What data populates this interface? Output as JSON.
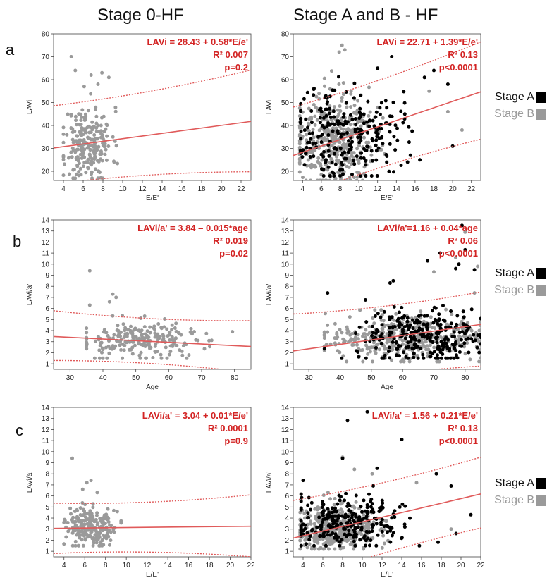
{
  "headers": {
    "col_left": "Stage 0-HF",
    "col_right": "Stage A and B - HF"
  },
  "row_letters": [
    "a",
    "b",
    "c"
  ],
  "legend": {
    "stage_a": "Stage A",
    "stage_b": "Stage B",
    "color_a": "#000000",
    "color_b": "#9a9a9a"
  },
  "colors": {
    "stage0": "#9a9a9a",
    "stageA": "#000000",
    "stageB": "#9a9a9a",
    "fit": "#e05a5a",
    "equation": "#d32424"
  },
  "chart_data": [
    {
      "id": "a-left",
      "type": "scatter",
      "xlabel": "E/E'",
      "ylabel": "LAVi",
      "xlim": [
        3,
        23
      ],
      "ylim": [
        16,
        80
      ],
      "xticks": [
        4,
        6,
        8,
        10,
        12,
        14,
        16,
        18,
        20,
        22
      ],
      "yticks": [
        20,
        30,
        40,
        50,
        60,
        70,
        80
      ],
      "annotation": [
        "LAVi = 28.43 + 0.58*E/e'",
        "R² 0.007",
        "p=0.2"
      ],
      "fit": {
        "intercept": 28.43,
        "slope": 0.58,
        "ci_upper": [
          48.6,
          64.2
        ],
        "ci_lower": [
          14.5,
          19.8
        ],
        "ci_x": [
          3,
          23
        ]
      },
      "series": [
        {
          "name": "Stage 0",
          "color": "#9a9a9a",
          "cloud": {
            "n": 230,
            "x": [
              4,
              9.5
            ],
            "xmean": 6.5,
            "xsd": 1.2,
            "ymean": 32,
            "ysd": 8,
            "ymin": 17,
            "ymax": 63,
            "seed": 11
          },
          "points": [
            [
              4.8,
              70
            ],
            [
              5.2,
              64
            ],
            [
              6.8,
              62
            ],
            [
              7.9,
              63
            ],
            [
              8.6,
              61
            ],
            [
              7.5,
              58
            ],
            [
              6.1,
              57
            ]
          ]
        }
      ]
    },
    {
      "id": "a-right",
      "type": "scatter",
      "xlabel": "E/E'",
      "ylabel": "LAVi",
      "xlim": [
        3,
        23
      ],
      "ylim": [
        16,
        80
      ],
      "xticks": [
        4,
        6,
        8,
        10,
        12,
        14,
        16,
        18,
        20,
        22
      ],
      "yticks": [
        20,
        30,
        40,
        50,
        60,
        70,
        80
      ],
      "annotation": [
        "LAVi = 22.71 + 1.39*E/e'",
        "R² 0.13",
        "p<0.0001"
      ],
      "fit": {
        "intercept": 22.71,
        "slope": 1.39,
        "ci_upper": [
          48.0,
          76.5
        ],
        "ci_lower": [
          8.5,
          34.0
        ],
        "ci_x": [
          3,
          23
        ]
      },
      "series": [
        {
          "name": "Stage B",
          "color": "#9a9a9a",
          "cloud": {
            "n": 420,
            "x": [
              3.7,
              16
            ],
            "xmean": 7.2,
            "xsd": 2.2,
            "ymean": 33,
            "ysd": 10,
            "ymin": 16,
            "ymax": 76,
            "seed": 23
          },
          "points": [
            [
              8.2,
              75
            ],
            [
              8.5,
              73
            ],
            [
              7.9,
              72
            ],
            [
              19.5,
              46
            ],
            [
              21,
              38
            ],
            [
              17.5,
              55
            ]
          ]
        },
        {
          "name": "Stage A",
          "color": "#000000",
          "cloud": {
            "n": 260,
            "x": [
              3.8,
              20
            ],
            "xmean": 8.5,
            "xsd": 3.0,
            "ymean": 37,
            "ysd": 10,
            "ymin": 18,
            "ymax": 71,
            "seed": 37
          },
          "points": [
            [
              13.5,
              70
            ],
            [
              12,
              65
            ],
            [
              18,
              64
            ],
            [
              17,
              61
            ],
            [
              19.5,
              58
            ],
            [
              20,
              31
            ],
            [
              15.5,
              27
            ],
            [
              16.5,
              25
            ]
          ]
        }
      ]
    },
    {
      "id": "b-left",
      "type": "scatter",
      "xlabel": "Age",
      "ylabel": "LAVi/a'",
      "xlim": [
        25,
        85
      ],
      "ylim": [
        0.5,
        14
      ],
      "xticks": [
        30,
        40,
        50,
        60,
        70,
        80
      ],
      "yticks": [
        1,
        2,
        3,
        4,
        5,
        6,
        7,
        8,
        9,
        10,
        11,
        12,
        13,
        14
      ],
      "annotation": [
        "LAVi/a' = 3.84 – 0.015*age",
        "R² 0.019",
        "p=0.02"
      ],
      "fit": {
        "intercept": 3.84,
        "slope": -0.015,
        "ci_upper": [
          5.8,
          4.9
        ],
        "ci_lower": [
          1.3,
          0.2
        ],
        "ci_x": [
          25,
          85
        ]
      },
      "series": [
        {
          "name": "Stage 0",
          "color": "#9a9a9a",
          "cloud": {
            "n": 230,
            "x": [
              35,
              82
            ],
            "xmean": 52,
            "xsd": 10,
            "ymean": 3.1,
            "ysd": 0.9,
            "ymin": 1.5,
            "ymax": 6.2,
            "seed": 53
          },
          "points": [
            [
              36,
              9.4
            ],
            [
              43,
              7.3
            ],
            [
              44,
              7.0
            ],
            [
              42,
              6.6
            ],
            [
              36,
              6.3
            ]
          ]
        }
      ]
    },
    {
      "id": "b-right",
      "type": "scatter",
      "xlabel": "Age",
      "ylabel": "LAVi/a'",
      "xlim": [
        25,
        85
      ],
      "ylim": [
        0.5,
        14
      ],
      "xticks": [
        30,
        40,
        50,
        60,
        70,
        80
      ],
      "yticks": [
        1,
        2,
        3,
        4,
        5,
        6,
        7,
        8,
        9,
        10,
        11,
        12,
        13,
        14
      ],
      "annotation": [
        "LAVi/a'=1.16 + 0.04*age",
        "R² 0.06",
        "p<0.0001"
      ],
      "fit": {
        "intercept": 1.16,
        "slope": 0.04,
        "ci_upper": [
          5.5,
          7.5
        ],
        "ci_lower": [
          -1.3,
          0.8
        ],
        "ci_x": [
          25,
          85
        ]
      },
      "series": [
        {
          "name": "Stage B",
          "color": "#9a9a9a",
          "cloud": {
            "n": 420,
            "x": [
              35,
              85
            ],
            "xmean": 60,
            "xsd": 12,
            "ymean": 3.2,
            "ysd": 1.0,
            "ymin": 1.2,
            "ymax": 7,
            "seed": 67
          },
          "points": [
            [
              80,
              12.9
            ],
            [
              77,
              10.6
            ],
            [
              70,
              9.3
            ],
            [
              84,
              9.8
            ],
            [
              83,
              7.4
            ]
          ]
        },
        {
          "name": "Stage A",
          "color": "#000000",
          "cloud": {
            "n": 280,
            "x": [
              35,
              85
            ],
            "xmean": 66,
            "xsd": 10,
            "ymean": 3.6,
            "ysd": 1.2,
            "ymin": 1.5,
            "ymax": 8,
            "seed": 79
          },
          "points": [
            [
              79,
              13.5
            ],
            [
              80,
              11.3
            ],
            [
              72,
              11.0
            ],
            [
              68,
              10.3
            ],
            [
              78,
              10.0
            ],
            [
              77,
              9.6
            ],
            [
              83,
              9.5
            ],
            [
              57,
              8.5
            ],
            [
              56,
              8.3
            ],
            [
              36,
              7.4
            ]
          ]
        }
      ]
    },
    {
      "id": "c-left",
      "type": "scatter",
      "xlabel": "E/E'",
      "ylabel": "LAVi/a'",
      "xlim": [
        3,
        22
      ],
      "ylim": [
        0.5,
        14
      ],
      "xticks": [
        4,
        6,
        8,
        10,
        12,
        14,
        16,
        18,
        20,
        22
      ],
      "yticks": [
        1,
        2,
        3,
        4,
        5,
        6,
        7,
        8,
        9,
        10,
        11,
        12,
        13,
        14
      ],
      "annotation": [
        "LAVi/a' = 3.04 + 0.01*E/e'",
        "R² 0.0001",
        "p=0.9"
      ],
      "fit": {
        "intercept": 3.04,
        "slope": 0.01,
        "ci_upper": [
          5.35,
          6.1
        ],
        "ci_lower": [
          0.8,
          0.5
        ],
        "ci_x": [
          3,
          22
        ]
      },
      "series": [
        {
          "name": "Stage 0",
          "color": "#9a9a9a",
          "cloud": {
            "n": 230,
            "x": [
              4,
              9.5
            ],
            "xmean": 6.5,
            "xsd": 1.2,
            "ymean": 3.1,
            "ysd": 0.9,
            "ymin": 1.5,
            "ymax": 6.2,
            "seed": 91
          },
          "points": [
            [
              4.8,
              9.4
            ],
            [
              6.6,
              7.4
            ],
            [
              6.2,
              7.2
            ],
            [
              5.8,
              6.6
            ],
            [
              7.2,
              6.3
            ]
          ]
        }
      ]
    },
    {
      "id": "c-right",
      "type": "scatter",
      "xlabel": "E/E'",
      "ylabel": "LAVi/a'",
      "xlim": [
        3,
        22
      ],
      "ylim": [
        0.5,
        14
      ],
      "xticks": [
        4,
        6,
        8,
        10,
        12,
        14,
        16,
        18,
        20,
        22
      ],
      "yticks": [
        1,
        2,
        3,
        4,
        5,
        6,
        7,
        8,
        9,
        10,
        11,
        12,
        13,
        14
      ],
      "annotation": [
        "LAVi/a' = 1.56 + 0.21*E/e'",
        "R² 0.13",
        "p<0.0001"
      ],
      "fit": {
        "intercept": 1.56,
        "slope": 0.21,
        "ci_upper": [
          5.6,
          9.5
        ],
        "ci_lower": [
          -1.8,
          3.1
        ],
        "ci_x": [
          3,
          22
        ]
      },
      "series": [
        {
          "name": "Stage B",
          "color": "#9a9a9a",
          "cloud": {
            "n": 420,
            "x": [
              3.7,
              16
            ],
            "xmean": 7.2,
            "xsd": 2.2,
            "ymean": 3.1,
            "ysd": 1.0,
            "ymin": 1.2,
            "ymax": 7,
            "seed": 103
          },
          "points": [
            [
              8,
              9.5
            ],
            [
              9.2,
              8.4
            ],
            [
              15.5,
              7.2
            ],
            [
              11,
              8.0
            ],
            [
              19,
              3.0
            ]
          ]
        },
        {
          "name": "Stage A",
          "color": "#000000",
          "cloud": {
            "n": 260,
            "x": [
              3.8,
              20
            ],
            "xmean": 8.5,
            "xsd": 3.0,
            "ymean": 3.5,
            "ysd": 1.2,
            "ymin": 1.5,
            "ymax": 8,
            "seed": 127
          },
          "points": [
            [
              10.5,
              13.6
            ],
            [
              8.5,
              12.8
            ],
            [
              14,
              11.1
            ],
            [
              8.0,
              9.4
            ],
            [
              11.5,
              8.5
            ],
            [
              17.5,
              8.0
            ],
            [
              4.0,
              7.4
            ],
            [
              19,
              6.9
            ],
            [
              21,
              4.3
            ],
            [
              19.5,
              2.6
            ]
          ]
        }
      ]
    }
  ]
}
